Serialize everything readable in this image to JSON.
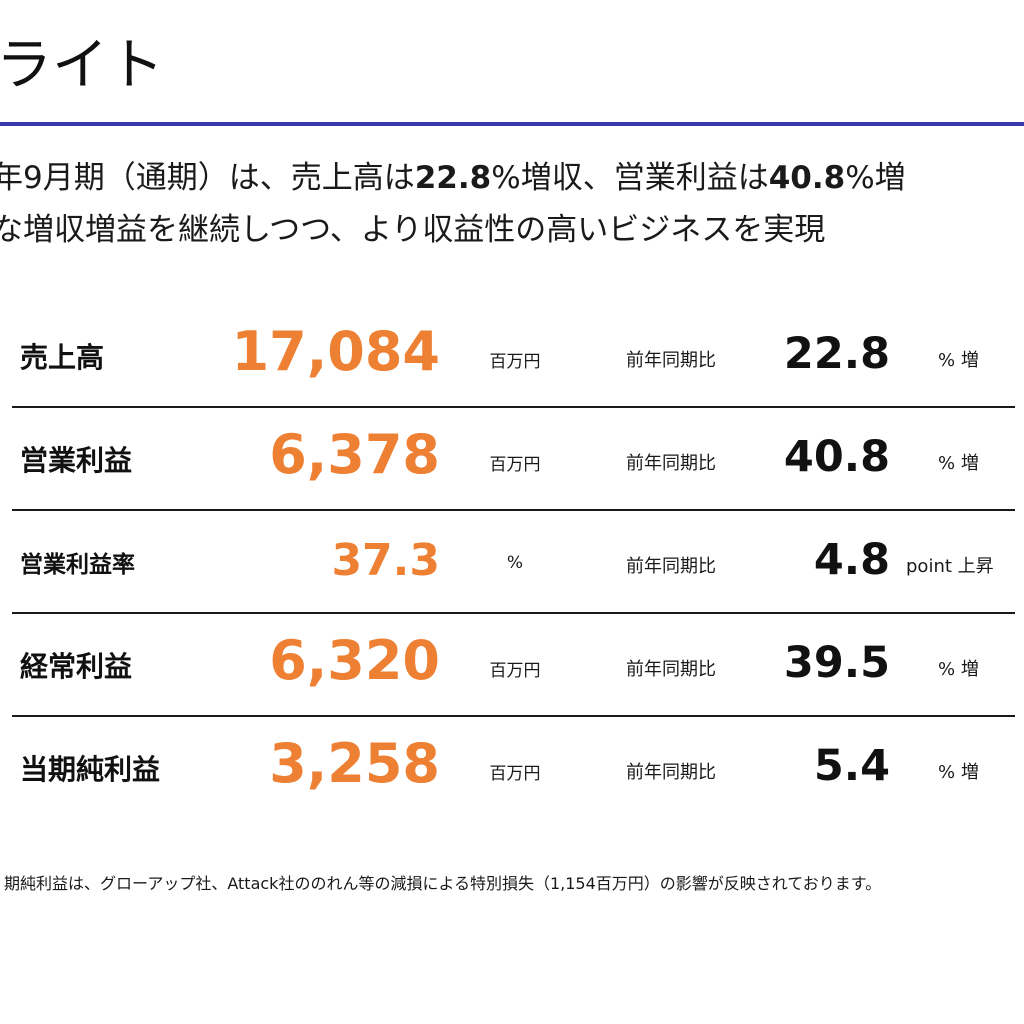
{
  "title": "ライト",
  "summary": {
    "line1_part1": "年9月期（通期）は、売上高は",
    "line1_bold1": "22.8",
    "line1_part2": "%増収、営業利益は",
    "line1_bold2": "40.8",
    "line1_part3": "%増",
    "line2": "な増収増益を継続しつつ、より収益性の高いビジネスを実現"
  },
  "rows": [
    {
      "label": "売上高",
      "value": "17,084",
      "unit": "百万円",
      "compare": "前年同期比",
      "change": "22.8",
      "suffix": "% 増"
    },
    {
      "label": "営業利益",
      "value": "6,378",
      "unit": "百万円",
      "compare": "前年同期比",
      "change": "40.8",
      "suffix": "% 増"
    },
    {
      "label": "営業利益率",
      "value": "37.3",
      "unit": "%",
      "compare": "前年同期比",
      "change": "4.8",
      "suffix": "point 上昇"
    },
    {
      "label": "経常利益",
      "value": "6,320",
      "unit": "百万円",
      "compare": "前年同期比",
      "change": "39.5",
      "suffix": "% 増"
    },
    {
      "label": "当期純利益",
      "value": "3,258",
      "unit": "百万円",
      "compare": "前年同期比",
      "change": "5.4",
      "suffix": "% 増"
    }
  ],
  "footnote": "期純利益は、グローアップ社、Attack社ののれん等の減損による特別損失（1,154百万円）の影響が反映されております。",
  "colors": {
    "accent_value": "#ee8034",
    "title_rule": "#3a3ab0"
  }
}
